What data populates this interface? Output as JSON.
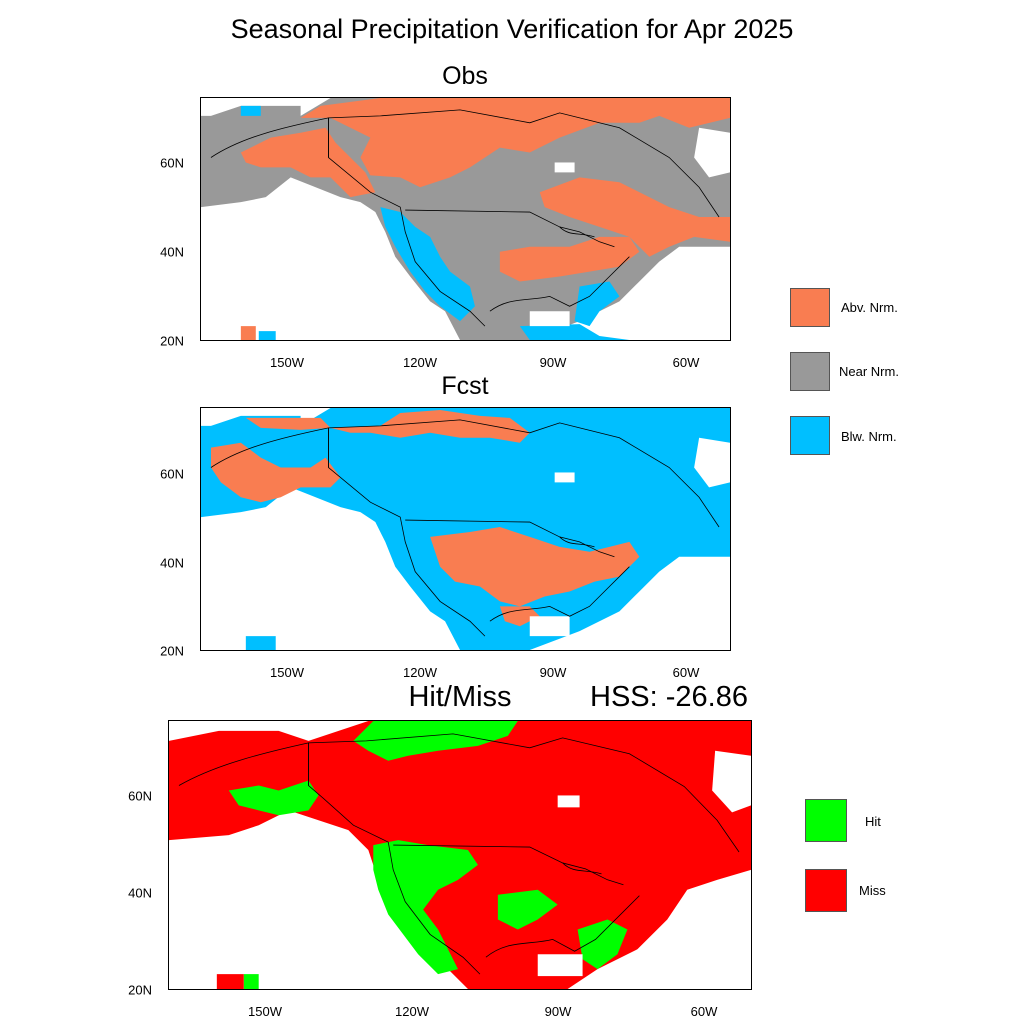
{
  "title": "Seasonal Precipitation Verification for Apr 2025",
  "colors": {
    "above": "#f97d51",
    "near": "#999999",
    "below": "#00bfff",
    "hit": "#00ff00",
    "miss": "#ff0000",
    "coast": "#000000"
  },
  "panels": {
    "obs": {
      "title": "Obs"
    },
    "fcst": {
      "title": "Fcst"
    },
    "hitmiss": {
      "title": "Hit/Miss",
      "score": "HSS: -26.86"
    }
  },
  "axes": {
    "lon_labels": [
      "150W",
      "120W",
      "90W",
      "60W"
    ],
    "lat_labels": [
      "60N",
      "40N",
      "20N"
    ]
  },
  "legend_category": {
    "items": [
      {
        "label": "Abv. Nrm.",
        "color": "#f97d51"
      },
      {
        "label": "Near Nrm.",
        "color": "#999999"
      },
      {
        "label": "Blw. Nrm.",
        "color": "#00bfff"
      }
    ]
  },
  "legend_hitmiss": {
    "items": [
      {
        "label": "Hit",
        "color": "#00ff00"
      },
      {
        "label": "Miss",
        "color": "#ff0000"
      }
    ]
  }
}
